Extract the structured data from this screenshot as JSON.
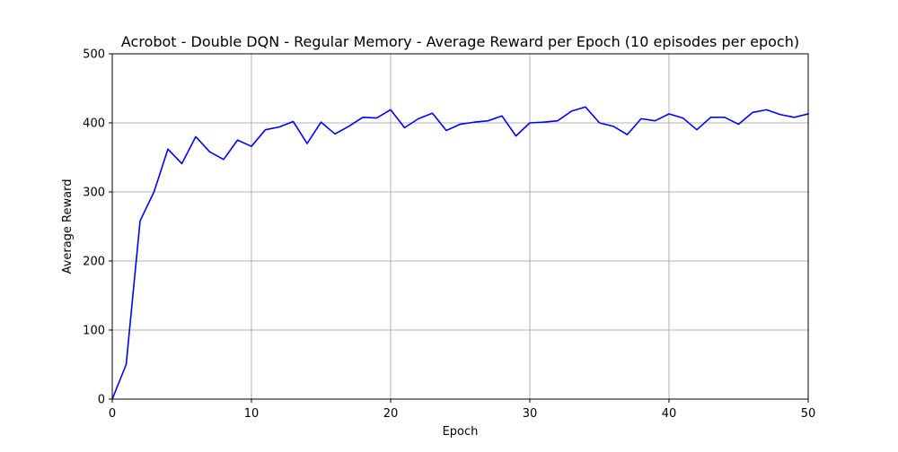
{
  "colors": {
    "line": "#0000ff",
    "grid": "#b0b0b0",
    "axis": "#000000",
    "background": "#ffffff"
  },
  "chart_data": {
    "type": "line",
    "title": "Acrobot - Double DQN - Regular Memory - Average Reward per Epoch (10 episodes per epoch)",
    "xlabel": "Epoch",
    "ylabel": "Average Reward",
    "xlim": [
      0,
      50
    ],
    "ylim": [
      0,
      500
    ],
    "xticks": [
      0,
      10,
      20,
      30,
      40,
      50
    ],
    "yticks": [
      0,
      100,
      200,
      300,
      400,
      500
    ],
    "grid": true,
    "series": [
      {
        "color": "#0000ff",
        "x": [
          0,
          1,
          2,
          3,
          4,
          5,
          6,
          7,
          8,
          9,
          10,
          11,
          12,
          13,
          14,
          15,
          16,
          17,
          18,
          19,
          20,
          21,
          22,
          23,
          24,
          25,
          26,
          27,
          28,
          29,
          30,
          31,
          32,
          33,
          34,
          35,
          36,
          37,
          38,
          39,
          40,
          41,
          42,
          43,
          44,
          45,
          46,
          47,
          48,
          49,
          50
        ],
        "y": [
          0,
          50,
          258,
          300,
          362,
          341,
          380,
          358,
          347,
          375,
          366,
          390,
          394,
          402,
          370,
          401,
          384,
          395,
          408,
          407,
          419,
          393,
          406,
          414,
          389,
          398,
          401,
          403,
          410,
          381,
          400,
          401,
          403,
          417,
          423,
          400,
          395,
          383,
          406,
          403,
          413,
          407,
          390,
          408,
          408,
          398,
          415,
          419,
          412,
          408,
          413
        ]
      }
    ]
  }
}
